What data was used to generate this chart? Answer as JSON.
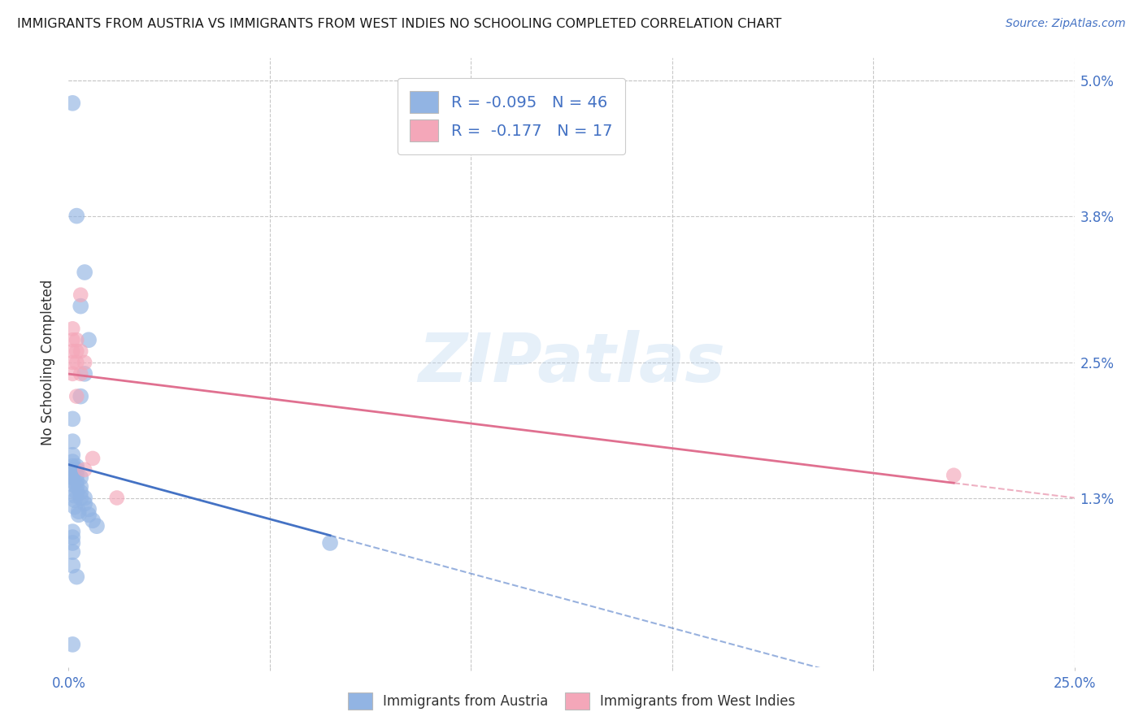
{
  "title": "IMMIGRANTS FROM AUSTRIA VS IMMIGRANTS FROM WEST INDIES NO SCHOOLING COMPLETED CORRELATION CHART",
  "source": "Source: ZipAtlas.com",
  "ylabel": "No Schooling Completed",
  "xlim": [
    0,
    0.25
  ],
  "ylim": [
    -0.002,
    0.052
  ],
  "ytick_positions": [
    0.013,
    0.025,
    0.038,
    0.05
  ],
  "ytick_labels": [
    "1.3%",
    "2.5%",
    "3.8%",
    "5.0%"
  ],
  "xtick_positions": [
    0.0,
    0.25
  ],
  "xtick_labels": [
    "0.0%",
    "25.0%"
  ],
  "austria_color": "#92b4e3",
  "west_indies_color": "#f4a7b9",
  "austria_line_color": "#4472c4",
  "west_indies_line_color": "#e07090",
  "austria_R": -0.095,
  "austria_N": 46,
  "west_indies_R": -0.177,
  "west_indies_N": 17,
  "austria_x": [
    0.001,
    0.002,
    0.004,
    0.003,
    0.005,
    0.004,
    0.003,
    0.001,
    0.001,
    0.001,
    0.001,
    0.001,
    0.001,
    0.001,
    0.001,
    0.001,
    0.001,
    0.002,
    0.002,
    0.002,
    0.002,
    0.002,
    0.002,
    0.003,
    0.003,
    0.003,
    0.003,
    0.004,
    0.004,
    0.005,
    0.005,
    0.006,
    0.007,
    0.0015,
    0.0015,
    0.0015,
    0.0025,
    0.0025,
    0.001,
    0.001,
    0.001,
    0.001,
    0.001,
    0.002,
    0.065,
    0.001
  ],
  "austria_y": [
    0.048,
    0.038,
    0.033,
    0.03,
    0.027,
    0.024,
    0.022,
    0.02,
    0.018,
    0.0168,
    0.0162,
    0.0158,
    0.0155,
    0.0152,
    0.0148,
    0.0145,
    0.0142,
    0.0158,
    0.0155,
    0.015,
    0.0145,
    0.014,
    0.0135,
    0.0148,
    0.014,
    0.0135,
    0.013,
    0.013,
    0.0125,
    0.012,
    0.0115,
    0.011,
    0.0105,
    0.0132,
    0.0128,
    0.0122,
    0.0118,
    0.0115,
    0.01,
    0.0095,
    0.009,
    0.0082,
    0.007,
    0.006,
    0.009,
    0.0
  ],
  "west_indies_x": [
    0.001,
    0.001,
    0.001,
    0.001,
    0.001,
    0.002,
    0.002,
    0.002,
    0.002,
    0.003,
    0.003,
    0.004,
    0.004,
    0.006,
    0.012,
    0.22,
    0.003
  ],
  "west_indies_y": [
    0.028,
    0.027,
    0.026,
    0.025,
    0.024,
    0.027,
    0.026,
    0.025,
    0.022,
    0.026,
    0.024,
    0.025,
    0.0155,
    0.0165,
    0.013,
    0.015,
    0.031
  ],
  "watermark_text": "ZIPatlas",
  "background_color": "#ffffff",
  "grid_color": "#c8c8c8"
}
